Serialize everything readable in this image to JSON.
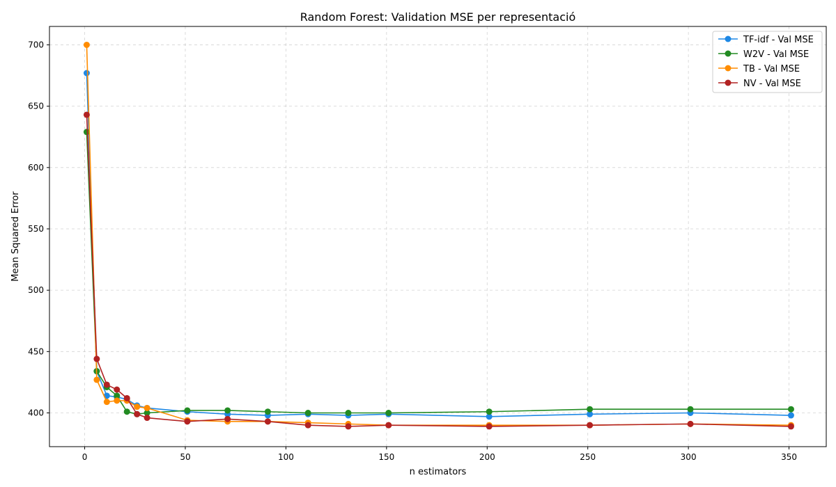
{
  "chart_data": {
    "type": "line",
    "title": "Random Forest: Validation MSE per representació",
    "xlabel": "n estimators",
    "ylabel": "Mean Squared Error",
    "xlim": [
      -17.5,
      368.5
    ],
    "ylim": [
      372.5,
      715
    ],
    "xticks": [
      0,
      50,
      100,
      150,
      200,
      250,
      300,
      350
    ],
    "yticks": [
      400,
      450,
      500,
      550,
      600,
      650,
      700
    ],
    "grid": true,
    "legend_position": "top-right",
    "x": [
      1,
      6,
      11,
      16,
      21,
      26,
      31,
      51,
      71,
      91,
      111,
      131,
      151,
      201,
      251,
      301,
      351
    ],
    "series": [
      {
        "name": "TF-idf - Val MSE",
        "color": "#1e88e5",
        "values": [
          677,
          434,
          414,
          413,
          411,
          406,
          404,
          401,
          399,
          398,
          399,
          398,
          399,
          397,
          399,
          400,
          398
        ]
      },
      {
        "name": "W2V - Val MSE",
        "color": "#228b22",
        "values": [
          629,
          434,
          421,
          414,
          401,
          399,
          400,
          402,
          402,
          401,
          400,
          400,
          400,
          401,
          403,
          403,
          403
        ]
      },
      {
        "name": "TB - Val MSE",
        "color": "#ff8c00",
        "values": [
          700,
          427,
          409,
          410,
          410,
          405,
          404,
          394,
          393,
          393,
          392,
          391,
          390,
          390,
          390,
          391,
          390
        ]
      },
      {
        "name": "NV - Val MSE",
        "color": "#b22222",
        "values": [
          643,
          444,
          423,
          419,
          412,
          399,
          396,
          393,
          395,
          393,
          390,
          389,
          390,
          389,
          390,
          391,
          389
        ]
      }
    ]
  }
}
